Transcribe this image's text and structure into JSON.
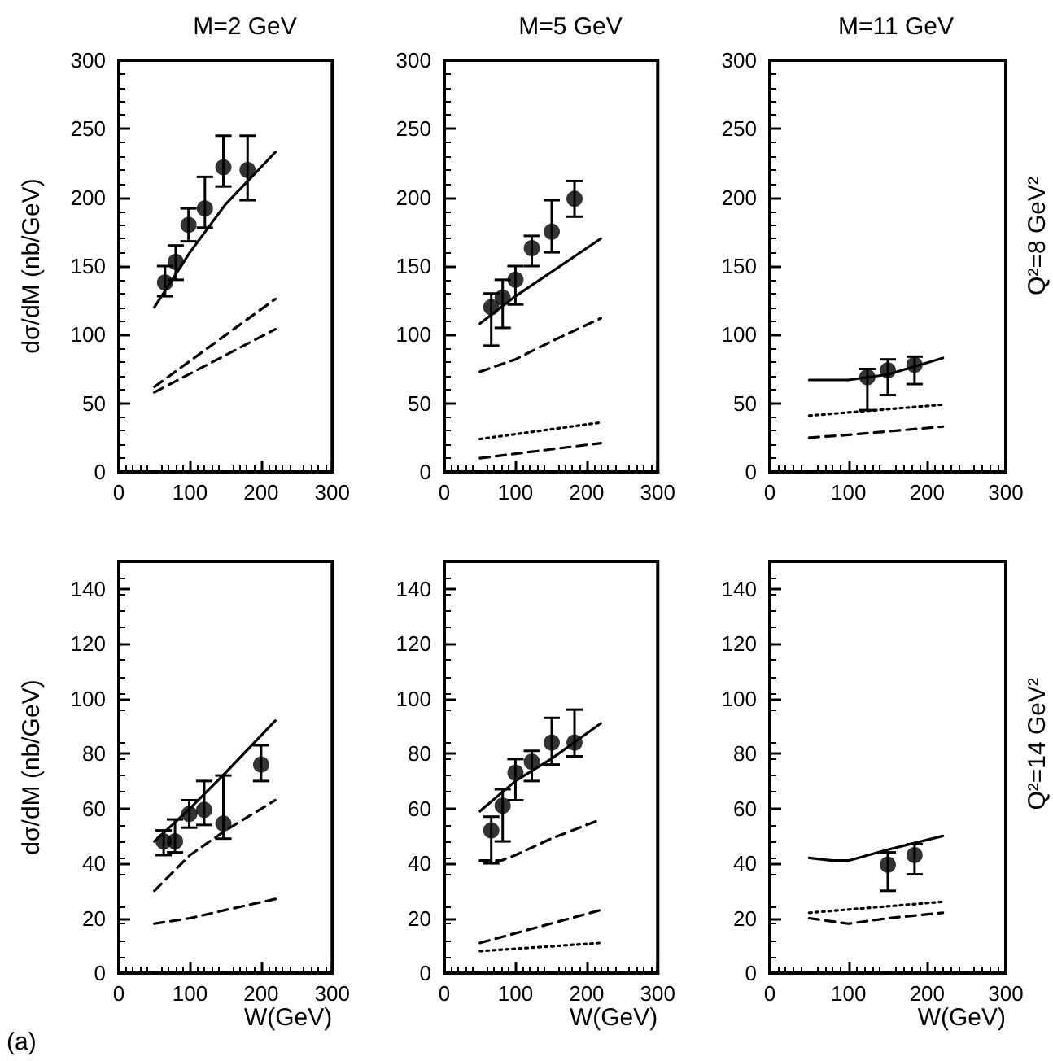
{
  "chart_data": [
    {
      "type": "scatter",
      "title": "M=2 GeV",
      "ylabel": "dσ/dM (nb/GeV)",
      "xlim": [
        0,
        300
      ],
      "xticks": [
        0,
        100,
        200,
        300
      ],
      "ylim": [
        0,
        300
      ],
      "yticks": [
        0,
        50,
        100,
        150,
        200,
        250,
        300
      ],
      "grid": false,
      "series": [
        {
          "type": "line",
          "color": "#000000",
          "line_style": "solid",
          "marker": "none",
          "x": [
            50,
            100,
            150,
            220
          ],
          "values": [
            120,
            160,
            195,
            233
          ]
        },
        {
          "type": "line",
          "color": "#000000",
          "line_style": "dashed",
          "marker": "none",
          "x": [
            50,
            220
          ],
          "values": [
            62,
            126
          ]
        },
        {
          "type": "line",
          "color": "#000000",
          "line_style": "dashed",
          "marker": "none",
          "x": [
            50,
            220
          ],
          "values": [
            58,
            104
          ]
        },
        {
          "color": "#000000",
          "marker": "circle",
          "x": [
            65,
            80,
            98,
            121,
            147,
            181
          ],
          "values": [
            138,
            153,
            180,
            192,
            222,
            220
          ],
          "errors": [
            [
              128,
              150
            ],
            [
              140,
              165
            ],
            [
              168,
              192
            ],
            [
              178,
              215
            ],
            [
              208,
              245
            ],
            [
              198,
              245
            ]
          ]
        }
      ]
    },
    {
      "type": "scatter",
      "title": "M=5 GeV",
      "xlim": [
        0,
        300
      ],
      "xticks": [
        0,
        100,
        200,
        300
      ],
      "ylim": [
        0,
        300
      ],
      "yticks": [
        0,
        50,
        100,
        150,
        200,
        250,
        300
      ],
      "grid": false,
      "series": [
        {
          "type": "line",
          "color": "#000000",
          "line_style": "solid",
          "marker": "none",
          "x": [
            50,
            100,
            220
          ],
          "values": [
            108,
            128,
            170
          ]
        },
        {
          "type": "line",
          "color": "#000000",
          "line_style": "dashed",
          "marker": "none",
          "x": [
            50,
            100,
            150,
            220
          ],
          "values": [
            73,
            82,
            95,
            112
          ]
        },
        {
          "type": "line",
          "color": "#000000",
          "line_style": "dotted",
          "marker": "none",
          "x": [
            50,
            220
          ],
          "values": [
            24,
            36
          ]
        },
        {
          "type": "line",
          "color": "#000000",
          "line_style": "dashed",
          "marker": "none",
          "x": [
            50,
            220
          ],
          "values": [
            10,
            21
          ]
        },
        {
          "color": "#000000",
          "marker": "circle",
          "x": [
            66,
            82,
            100,
            123,
            151,
            183
          ],
          "values": [
            120,
            127,
            140,
            163,
            175,
            199
          ],
          "errors": [
            [
              92,
              130
            ],
            [
              105,
              140
            ],
            [
              122,
              150
            ],
            [
              150,
              172
            ],
            [
              160,
              198
            ],
            [
              186,
              212
            ]
          ]
        }
      ]
    },
    {
      "type": "scatter",
      "title": "M=11 GeV",
      "y2label": "Q²=8 GeV²",
      "xlim": [
        0,
        300
      ],
      "xticks": [
        0,
        100,
        200,
        300
      ],
      "ylim": [
        0,
        300
      ],
      "yticks": [
        0,
        50,
        100,
        150,
        200,
        250,
        300
      ],
      "grid": false,
      "series": [
        {
          "type": "line",
          "color": "#000000",
          "line_style": "solid",
          "marker": "none",
          "x": [
            50,
            100,
            150,
            220
          ],
          "values": [
            67,
            67,
            71,
            83
          ]
        },
        {
          "type": "line",
          "color": "#000000",
          "line_style": "dotted",
          "marker": "none",
          "x": [
            50,
            220
          ],
          "values": [
            41,
            49
          ]
        },
        {
          "type": "line",
          "color": "#000000",
          "line_style": "dashed",
          "marker": "none",
          "x": [
            50,
            100,
            220
          ],
          "values": [
            25,
            27,
            33
          ]
        },
        {
          "color": "#000000",
          "marker": "circle",
          "x": [
            124,
            150,
            184
          ],
          "values": [
            69,
            74,
            78
          ],
          "errors": [
            [
              45,
              75
            ],
            [
              56,
              82
            ],
            [
              64,
              84
            ]
          ]
        }
      ]
    },
    {
      "type": "scatter",
      "ylabel": "dσ/dM (nb/GeV)",
      "xlabel": "W(GeV)",
      "annotations": [
        "(a)"
      ],
      "xlim": [
        0,
        300
      ],
      "xticks": [
        0,
        100,
        200,
        300
      ],
      "ylim": [
        0,
        150
      ],
      "yticks": [
        0,
        20,
        40,
        60,
        80,
        100,
        120,
        140
      ],
      "grid": false,
      "series": [
        {
          "type": "line",
          "color": "#000000",
          "line_style": "solid",
          "marker": "none",
          "x": [
            50,
            100,
            150,
            220
          ],
          "values": [
            48,
            60,
            73,
            92
          ]
        },
        {
          "type": "line",
          "color": "#000000",
          "line_style": "dashed",
          "marker": "none",
          "x": [
            50,
            100,
            150,
            220
          ],
          "values": [
            30,
            43,
            52,
            63
          ]
        },
        {
          "type": "line",
          "color": "#000000",
          "line_style": "dashed",
          "marker": "none",
          "x": [
            50,
            100,
            150,
            220
          ],
          "values": [
            18,
            20,
            23,
            27
          ]
        },
        {
          "color": "#000000",
          "marker": "circle",
          "x": [
            63,
            79,
            99,
            120,
            147,
            200
          ],
          "values": [
            48,
            48,
            58,
            59.5,
            54.5,
            76
          ],
          "errors": [
            [
              43,
              52
            ],
            [
              44,
              56
            ],
            [
              53,
              63
            ],
            [
              54,
              70
            ],
            [
              49,
              72
            ],
            [
              70,
              83
            ]
          ]
        }
      ]
    },
    {
      "type": "scatter",
      "xlabel": "W(GeV)",
      "xlim": [
        0,
        300
      ],
      "xticks": [
        0,
        100,
        200,
        300
      ],
      "ylim": [
        0,
        150
      ],
      "yticks": [
        0,
        20,
        40,
        60,
        80,
        100,
        120,
        140
      ],
      "grid": false,
      "series": [
        {
          "type": "line",
          "color": "#000000",
          "line_style": "solid",
          "marker": "none",
          "x": [
            50,
            100,
            150,
            220
          ],
          "values": [
            59,
            70,
            78,
            91
          ]
        },
        {
          "type": "line",
          "color": "#000000",
          "line_style": "dashed",
          "marker": "none",
          "x": [
            50,
            80,
            100,
            150,
            220
          ],
          "values": [
            41,
            41,
            43,
            49,
            56
          ]
        },
        {
          "type": "line",
          "color": "#000000",
          "line_style": "dashed",
          "marker": "none",
          "x": [
            50,
            220
          ],
          "values": [
            11,
            23
          ]
        },
        {
          "type": "line",
          "color": "#000000",
          "line_style": "dotted",
          "marker": "none",
          "x": [
            50,
            220
          ],
          "values": [
            8,
            11
          ]
        },
        {
          "color": "#000000",
          "marker": "circle",
          "x": [
            66,
            82,
            100,
            123,
            151,
            183
          ],
          "values": [
            52,
            61,
            73,
            77,
            84,
            84
          ],
          "errors": [
            [
              40,
              57
            ],
            [
              48,
              67
            ],
            [
              63,
              78
            ],
            [
              70,
              81
            ],
            [
              76,
              93
            ],
            [
              79,
              96
            ]
          ]
        }
      ]
    },
    {
      "type": "scatter",
      "xlabel": "W(GeV)",
      "y2label": "Q²=14 GeV²",
      "xlim": [
        0,
        300
      ],
      "xticks": [
        0,
        100,
        200,
        300
      ],
      "ylim": [
        0,
        150
      ],
      "yticks": [
        0,
        20,
        40,
        60,
        80,
        100,
        120,
        140
      ],
      "grid": false,
      "series": [
        {
          "type": "line",
          "color": "#000000",
          "line_style": "solid",
          "marker": "none",
          "x": [
            50,
            80,
            100,
            150,
            220
          ],
          "values": [
            42,
            41,
            41,
            45,
            50
          ]
        },
        {
          "type": "line",
          "color": "#000000",
          "line_style": "dotted",
          "marker": "none",
          "x": [
            50,
            220
          ],
          "values": [
            22,
            26
          ]
        },
        {
          "type": "line",
          "color": "#000000",
          "line_style": "dashed",
          "marker": "none",
          "x": [
            50,
            100,
            150,
            220
          ],
          "values": [
            20,
            18,
            20,
            22
          ]
        },
        {
          "color": "#000000",
          "marker": "circle",
          "x": [
            150,
            184
          ],
          "values": [
            39.5,
            43
          ],
          "errors": [
            [
              30,
              44
            ],
            [
              36,
              47
            ]
          ]
        }
      ]
    }
  ]
}
